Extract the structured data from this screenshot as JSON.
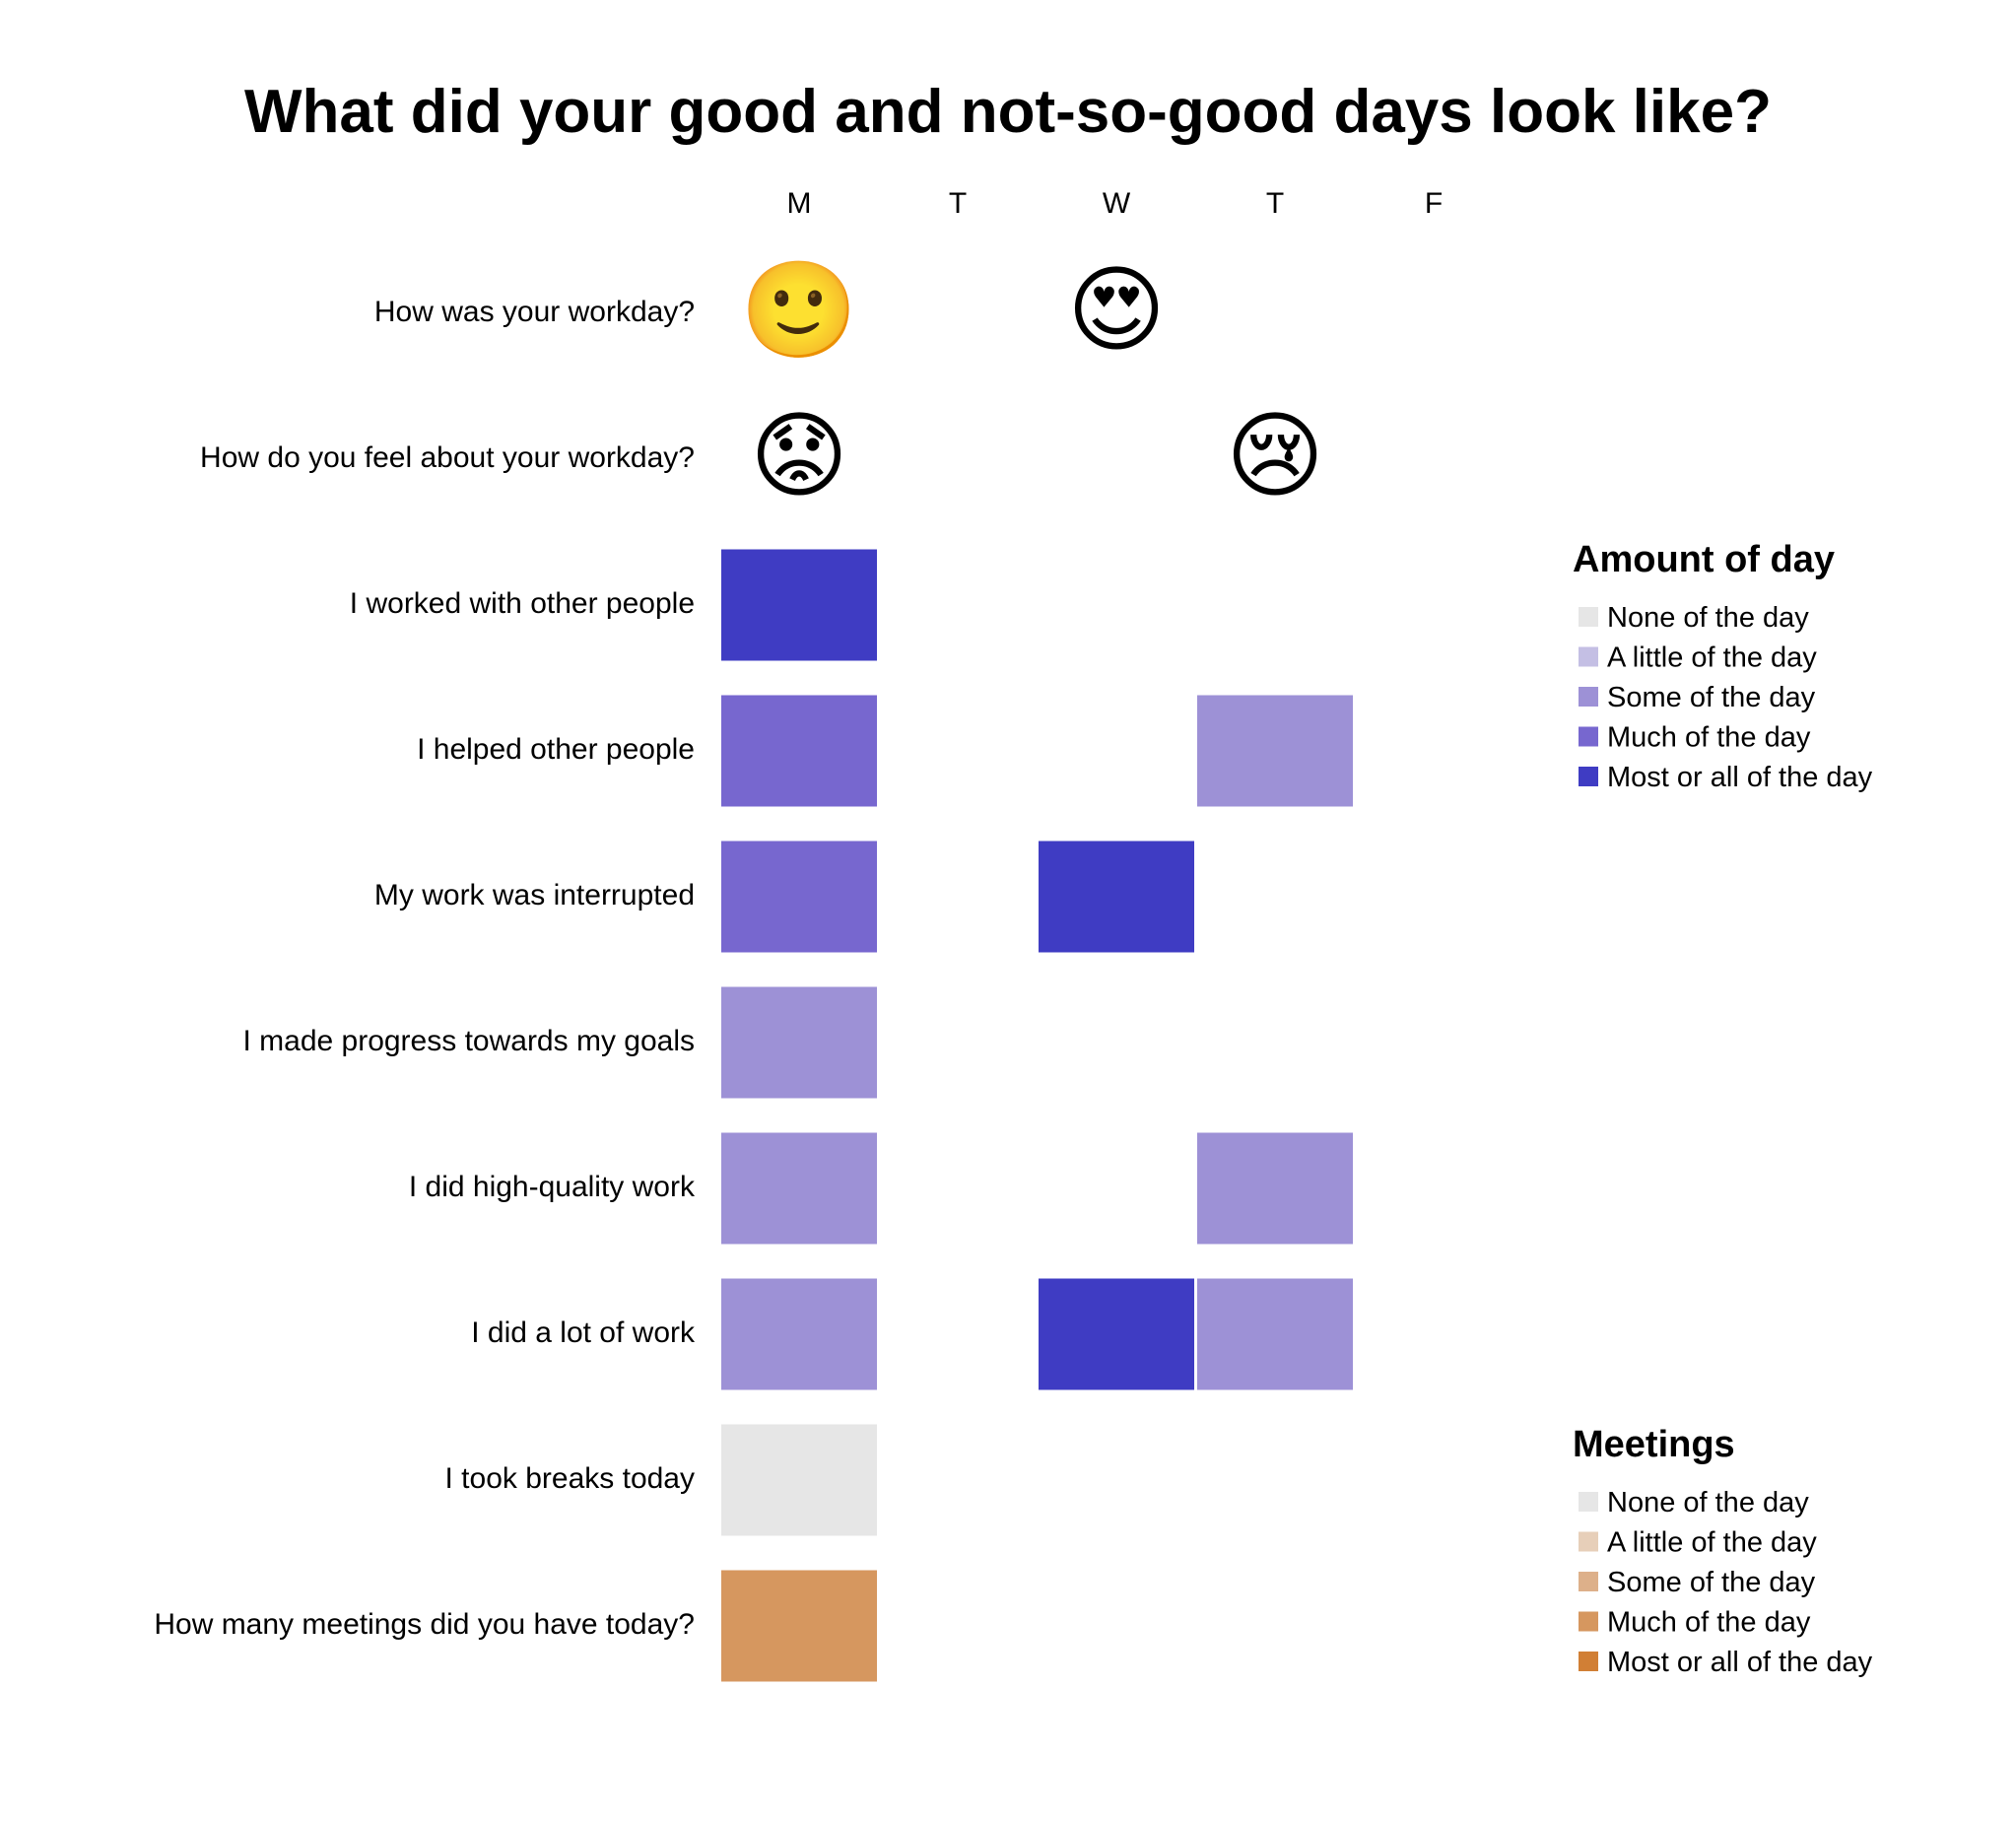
{
  "chart_data": {
    "type": "heatmap",
    "title": "What did your good and not-so-good days look like?",
    "x": [
      "M",
      "T",
      "W",
      "T",
      "F"
    ],
    "rows": [
      {
        "label": "How was your workday?",
        "kind": "emoji",
        "values": [
          "🙂",
          null,
          "😍",
          null,
          null
        ],
        "icon_names": [
          "slightly-smiling-face-icon",
          null,
          "heart-eyes-face-icon",
          null,
          null
        ]
      },
      {
        "label": "How do you feel about your workday?",
        "kind": "emoji",
        "values": [
          "😟",
          null,
          null,
          "😢",
          null
        ],
        "icon_names": [
          "worried-face-icon",
          null,
          null,
          "crying-face-icon",
          null
        ]
      },
      {
        "label": "I worked with other people",
        "kind": "amount",
        "values": [
          4,
          null,
          null,
          null,
          null
        ]
      },
      {
        "label": "I helped other people",
        "kind": "amount",
        "values": [
          3,
          null,
          null,
          2,
          null
        ]
      },
      {
        "label": "My work was interrupted",
        "kind": "amount",
        "values": [
          3,
          null,
          4,
          null,
          null
        ]
      },
      {
        "label": "I made progress towards my goals",
        "kind": "amount",
        "values": [
          2,
          null,
          null,
          null,
          null
        ]
      },
      {
        "label": "I did high-quality work",
        "kind": "amount",
        "values": [
          2,
          null,
          null,
          2,
          null
        ]
      },
      {
        "label": "I did a lot of work",
        "kind": "amount",
        "values": [
          2,
          null,
          4,
          2,
          null
        ]
      },
      {
        "label": "I took breaks today",
        "kind": "amount",
        "values": [
          0,
          null,
          null,
          null,
          null
        ]
      },
      {
        "label": "How many meetings did you have today?",
        "kind": "meetings",
        "values": [
          3,
          null,
          null,
          null,
          null
        ]
      }
    ],
    "legends": [
      {
        "title": "Amount of day",
        "scale": "amount",
        "entries": [
          "None of the day",
          "A little of the day",
          "Some of the day",
          "Much of the day",
          "Most or all of the day"
        ],
        "colors": [
          "#e6e6e6",
          "#c4bfe4",
          "#9d91d6",
          "#7767cf",
          "#3f3cc3"
        ]
      },
      {
        "title": "Meetings",
        "scale": "meetings",
        "entries": [
          "None of the day",
          "A little of the day",
          "Some of the day",
          "Much of the day",
          "Most or all of the day"
        ],
        "colors": [
          "#e6e6e6",
          "#e7cfb9",
          "#ddb08a",
          "#d6975f",
          "#d17f35"
        ]
      }
    ]
  }
}
